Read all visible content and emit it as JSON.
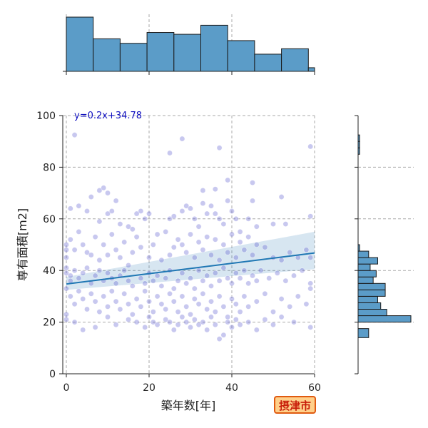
{
  "chart_data": {
    "type": "scatter",
    "xlabel": "築年数[年]",
    "ylabel": "専有面積[m2]",
    "xlim": [
      0,
      60
    ],
    "ylim": [
      0,
      100
    ],
    "xticks": [
      "0",
      "20",
      "40",
      "60"
    ],
    "yticks": [
      "0",
      "20",
      "40",
      "60",
      "80",
      "100"
    ],
    "grid": true,
    "regression": {
      "equation_label": "y=0.2x+34.78",
      "slope": 0.2,
      "intercept": 34.78,
      "ci_at_start": [
        32.5,
        37.5
      ],
      "ci_at_end": [
        40.5,
        55.0
      ],
      "color": "#1f77b4"
    },
    "point_color": "#5555cc",
    "badge_label": "摂津市",
    "x_hist": {
      "bin_edges": [
        0,
        6.5,
        13,
        19.5,
        26,
        32.5,
        39,
        45.5,
        52,
        58.5,
        60
      ],
      "counts": [
        60,
        36,
        31,
        43,
        41,
        51,
        34,
        19,
        25,
        4
      ]
    },
    "y_hist": {
      "bin_edges": [
        14,
        17.5,
        20,
        22.5,
        25,
        27.5,
        30,
        32.5,
        35,
        37.5,
        40,
        42.5,
        45,
        47.5,
        50,
        52.5,
        55,
        57.5,
        60,
        62.5,
        65,
        67.5,
        70,
        72.5,
        75,
        77.5,
        80,
        82.5,
        85,
        87.5,
        90,
        92.5
      ],
      "counts": [
        7,
        0,
        35,
        19,
        15,
        13,
        18,
        18,
        10,
        12,
        8,
        13,
        7,
        1,
        0,
        0,
        0,
        0,
        0,
        0,
        0,
        0,
        0,
        0,
        0,
        0,
        0,
        0,
        1,
        1,
        1
      ]
    },
    "points": [
      [
        2,
        92.5
      ],
      [
        28,
        91
      ],
      [
        37,
        87.5
      ],
      [
        59,
        88
      ],
      [
        25,
        85.5
      ],
      [
        9,
        72
      ],
      [
        8,
        71
      ],
      [
        10,
        70
      ],
      [
        33,
        71
      ],
      [
        36,
        71.5
      ],
      [
        39,
        75
      ],
      [
        45,
        74
      ],
      [
        52,
        68.5
      ],
      [
        6,
        68.5
      ],
      [
        12,
        67
      ],
      [
        18,
        63
      ],
      [
        17,
        62
      ],
      [
        19,
        60
      ],
      [
        1,
        64
      ],
      [
        3,
        65
      ],
      [
        5,
        63
      ],
      [
        8,
        59
      ],
      [
        10,
        62
      ],
      [
        11,
        63
      ],
      [
        13,
        58
      ],
      [
        15,
        57
      ],
      [
        16,
        56
      ],
      [
        20,
        62
      ],
      [
        25,
        60
      ],
      [
        26,
        61
      ],
      [
        28,
        63
      ],
      [
        29,
        65
      ],
      [
        30,
        64
      ],
      [
        31,
        60
      ],
      [
        32,
        57
      ],
      [
        33,
        66
      ],
      [
        34,
        62
      ],
      [
        35,
        65
      ],
      [
        36,
        62
      ],
      [
        37,
        60
      ],
      [
        38,
        58
      ],
      [
        39,
        67
      ],
      [
        40,
        63
      ],
      [
        41,
        60
      ],
      [
        42,
        55
      ],
      [
        44,
        60
      ],
      [
        45,
        67
      ],
      [
        46,
        57
      ],
      [
        50,
        58
      ],
      [
        53,
        58
      ],
      [
        59,
        61
      ],
      [
        0,
        50
      ],
      [
        0,
        48
      ],
      [
        0,
        45
      ],
      [
        1,
        52
      ],
      [
        2,
        48
      ],
      [
        3,
        55
      ],
      [
        4,
        50
      ],
      [
        5,
        47
      ],
      [
        6,
        46
      ],
      [
        7,
        53
      ],
      [
        8,
        44
      ],
      [
        9,
        50
      ],
      [
        10,
        46
      ],
      [
        11,
        54
      ],
      [
        12,
        48
      ],
      [
        13,
        45
      ],
      [
        14,
        51
      ],
      [
        15,
        42
      ],
      [
        16,
        47
      ],
      [
        17,
        53
      ],
      [
        18,
        49
      ],
      [
        20,
        45
      ],
      [
        21,
        50
      ],
      [
        22,
        54
      ],
      [
        23,
        44
      ],
      [
        24,
        55
      ],
      [
        25,
        46
      ],
      [
        26,
        49
      ],
      [
        27,
        52
      ],
      [
        28,
        50
      ],
      [
        29,
        47
      ],
      [
        30,
        54
      ],
      [
        31,
        45
      ],
      [
        32,
        51
      ],
      [
        33,
        48
      ],
      [
        34,
        53
      ],
      [
        35,
        46
      ],
      [
        36,
        52
      ],
      [
        37,
        44
      ],
      [
        38,
        50
      ],
      [
        39,
        47
      ],
      [
        40,
        54
      ],
      [
        41,
        45
      ],
      [
        42,
        51
      ],
      [
        43,
        48
      ],
      [
        44,
        53
      ],
      [
        45,
        46
      ],
      [
        46,
        50
      ],
      [
        48,
        49
      ],
      [
        50,
        45
      ],
      [
        52,
        44
      ],
      [
        54,
        47
      ],
      [
        56,
        45
      ],
      [
        58,
        48
      ],
      [
        59,
        45
      ],
      [
        0,
        41
      ],
      [
        0,
        39
      ],
      [
        1,
        38
      ],
      [
        1,
        36
      ],
      [
        2,
        40
      ],
      [
        3,
        37
      ],
      [
        4,
        39
      ],
      [
        5,
        41
      ],
      [
        6,
        35
      ],
      [
        7,
        38
      ],
      [
        8,
        40
      ],
      [
        9,
        36
      ],
      [
        10,
        39
      ],
      [
        11,
        37
      ],
      [
        12,
        35
      ],
      [
        13,
        38
      ],
      [
        14,
        40
      ],
      [
        15,
        36
      ],
      [
        16,
        34
      ],
      [
        18,
        37
      ],
      [
        19,
        35
      ],
      [
        20,
        39
      ],
      [
        21,
        36
      ],
      [
        22,
        38
      ],
      [
        23,
        34
      ],
      [
        24,
        37
      ],
      [
        25,
        40
      ],
      [
        26,
        33
      ],
      [
        27,
        36
      ],
      [
        28,
        39
      ],
      [
        29,
        35
      ],
      [
        30,
        37
      ],
      [
        31,
        33
      ],
      [
        32,
        40
      ],
      [
        33,
        36
      ],
      [
        34,
        38
      ],
      [
        35,
        34
      ],
      [
        36,
        39
      ],
      [
        37,
        36
      ],
      [
        38,
        41
      ],
      [
        39,
        37
      ],
      [
        40,
        35
      ],
      [
        41,
        39
      ],
      [
        42,
        37
      ],
      [
        43,
        40
      ],
      [
        44,
        35
      ],
      [
        45,
        38
      ],
      [
        46,
        36
      ],
      [
        47,
        40
      ],
      [
        49,
        37
      ],
      [
        51,
        39
      ],
      [
        53,
        36
      ],
      [
        55,
        38
      ],
      [
        57,
        40
      ],
      [
        59,
        35
      ],
      [
        59,
        33
      ],
      [
        0,
        33
      ],
      [
        1,
        30
      ],
      [
        2,
        27
      ],
      [
        3,
        32
      ],
      [
        4,
        29
      ],
      [
        5,
        25
      ],
      [
        6,
        31
      ],
      [
        7,
        28
      ],
      [
        8,
        24
      ],
      [
        9,
        30
      ],
      [
        10,
        26
      ],
      [
        11,
        32
      ],
      [
        12,
        28
      ],
      [
        13,
        25
      ],
      [
        14,
        31
      ],
      [
        15,
        27
      ],
      [
        16,
        23
      ],
      [
        17,
        29
      ],
      [
        18,
        26
      ],
      [
        19,
        32
      ],
      [
        20,
        28
      ],
      [
        21,
        24
      ],
      [
        22,
        30
      ],
      [
        23,
        27
      ],
      [
        24,
        25
      ],
      [
        25,
        31
      ],
      [
        26,
        28
      ],
      [
        27,
        24
      ],
      [
        28,
        30
      ],
      [
        29,
        26
      ],
      [
        30,
        23
      ],
      [
        31,
        29
      ],
      [
        32,
        27
      ],
      [
        33,
        31
      ],
      [
        34,
        25
      ],
      [
        35,
        28
      ],
      [
        36,
        24
      ],
      [
        37,
        30
      ],
      [
        38,
        26
      ],
      [
        39,
        22
      ],
      [
        40,
        29
      ],
      [
        41,
        27
      ],
      [
        42,
        24
      ],
      [
        43,
        30
      ],
      [
        44,
        26
      ],
      [
        46,
        28
      ],
      [
        48,
        31
      ],
      [
        50,
        24
      ],
      [
        52,
        29
      ],
      [
        54,
        26
      ],
      [
        56,
        30
      ],
      [
        58,
        27
      ],
      [
        0,
        23
      ],
      [
        0,
        21
      ],
      [
        2,
        20
      ],
      [
        4,
        17
      ],
      [
        7,
        18
      ],
      [
        10,
        22
      ],
      [
        12,
        19
      ],
      [
        15,
        21
      ],
      [
        17,
        20
      ],
      [
        19,
        18
      ],
      [
        20,
        22
      ],
      [
        21,
        20
      ],
      [
        22,
        19
      ],
      [
        24,
        21
      ],
      [
        25,
        20
      ],
      [
        26,
        17
      ],
      [
        27,
        19
      ],
      [
        28,
        22
      ],
      [
        29,
        20
      ],
      [
        30,
        18
      ],
      [
        31,
        21
      ],
      [
        32,
        19
      ],
      [
        33,
        20
      ],
      [
        34,
        17
      ],
      [
        35,
        22
      ],
      [
        36,
        19
      ],
      [
        37,
        13.5
      ],
      [
        38,
        15
      ],
      [
        39,
        20
      ],
      [
        40,
        18
      ],
      [
        41,
        21
      ],
      [
        42,
        19
      ],
      [
        44,
        20
      ],
      [
        46,
        17
      ],
      [
        48,
        21
      ],
      [
        50,
        19
      ],
      [
        52,
        22
      ],
      [
        55,
        20
      ],
      [
        59,
        18
      ]
    ]
  }
}
